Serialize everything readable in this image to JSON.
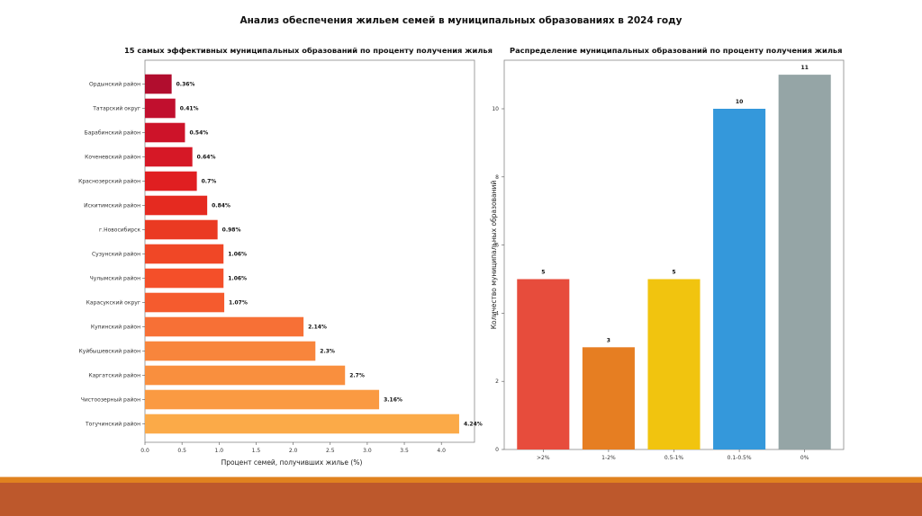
{
  "page": {
    "title": "Анализ обеспечения жильем семей в муниципальных образованиях в 2024 году"
  },
  "chart_data": [
    {
      "type": "bar",
      "orientation": "horizontal",
      "title": "15 самых эффективных муниципальных образований по проценту получения жилья",
      "xlabel": "Процент семей, получивших жилье (%)",
      "ylabel": "",
      "xlim": [
        0,
        4.45
      ],
      "xticks": [
        "0.0",
        "0.5",
        "1.0",
        "1.5",
        "2.0",
        "2.5",
        "3.0",
        "3.5",
        "4.0"
      ],
      "grid": false,
      "categories": [
        "Ордынский район",
        "Татарский округ",
        "Барабинский район",
        "Коченевский район",
        "Краснозерский район",
        "Искитимский район",
        "г.Новосибирск",
        "Сузунский район",
        "Чулымский район",
        "Карасукский округ",
        "Купинский район",
        "Куйбышевский район",
        "Каргатский район",
        "Чистоозерный район",
        "Тогучинский район"
      ],
      "values": [
        0.36,
        0.41,
        0.54,
        0.64,
        0.7,
        0.84,
        0.98,
        1.06,
        1.06,
        1.07,
        2.14,
        2.3,
        2.7,
        3.16,
        4.24
      ],
      "data_labels": [
        "0.36%",
        "0.41%",
        "0.54%",
        "0.64%",
        "0.7%",
        "0.84%",
        "0.98%",
        "1.06%",
        "1.06%",
        "1.07%",
        "2.14%",
        "2.3%",
        "2.7%",
        "3.16%",
        "4.24%"
      ],
      "colors": [
        "#b10d2e",
        "#c10f2e",
        "#cd1329",
        "#d61826",
        "#e01f21",
        "#e52a20",
        "#ea3a22",
        "#f04726",
        "#f44f29",
        "#f55b2e",
        "#f77036",
        "#f8853c",
        "#f98f3e",
        "#fa9a42",
        "#fbaa48"
      ]
    },
    {
      "type": "bar",
      "orientation": "vertical",
      "title": "Распределение муниципальных образований по проценту получения жилья",
      "xlabel": "",
      "ylabel": "Количество муниципальных образований",
      "ylim": [
        0,
        11.5
      ],
      "yticks": [
        "0",
        "2",
        "4",
        "6",
        "8",
        "10"
      ],
      "grid": false,
      "categories": [
        ">2%",
        "1-2%",
        "0.5-1%",
        "0.1-0.5%",
        "0%"
      ],
      "values": [
        5,
        3,
        5,
        10,
        11
      ],
      "data_labels": [
        "5",
        "3",
        "5",
        "10",
        "11"
      ],
      "colors": [
        "#e74c3c",
        "#e67e22",
        "#f1c40f",
        "#3498db",
        "#95a5a6"
      ]
    }
  ],
  "footer": {
    "stripe_color": "#e0821f",
    "band_color": "#bd582c"
  }
}
